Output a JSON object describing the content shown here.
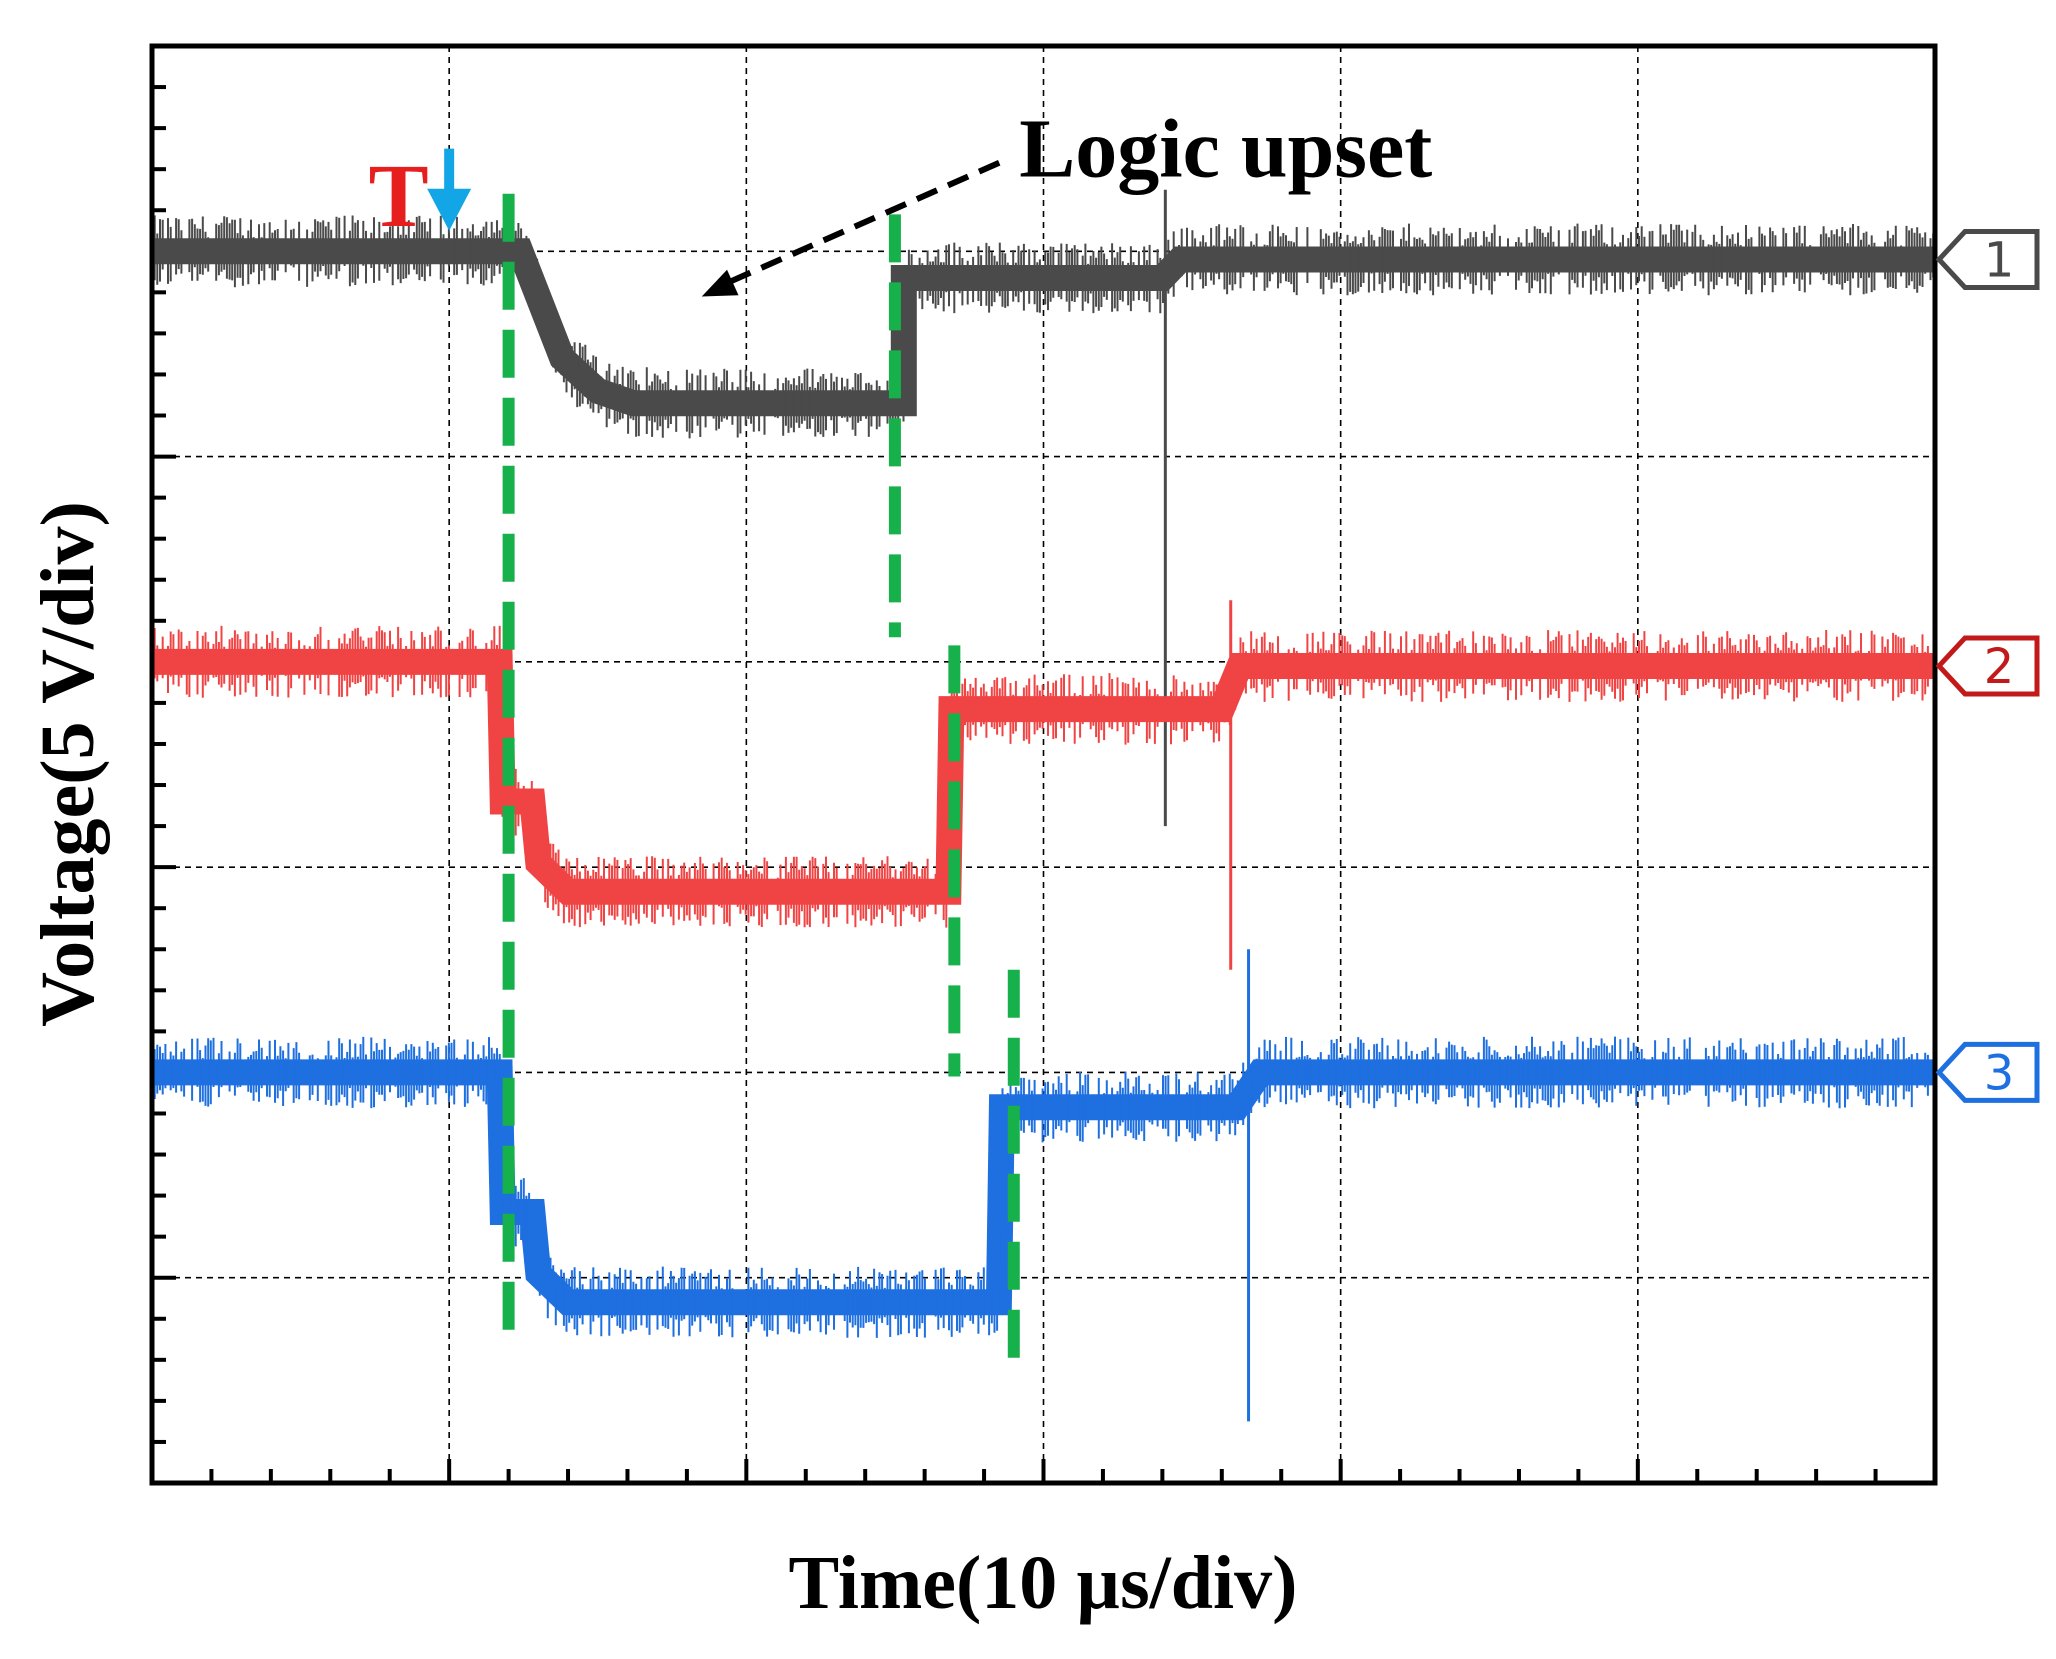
{
  "chart_data": {
    "type": "line",
    "title": "",
    "xlabel": "Time(10 µs/div)",
    "ylabel": "Voltage(5 V/div)",
    "x_unit": "µs",
    "x_per_div": 10,
    "y_per_div_volts": 5,
    "xlim": [
      0,
      60
    ],
    "ylim_div": [
      -3.5,
      3.5
    ],
    "grid": true,
    "divisions": {
      "x": 6,
      "y": 7
    },
    "series": [
      {
        "name": "1",
        "color": "#4a4a4a",
        "marker_label": "1",
        "marker_color": "#4a4a4a",
        "points": [
          [
            0,
            2.5
          ],
          [
            1.6,
            2.5
          ],
          [
            2.2,
            2.5
          ],
          [
            11.5,
            2.5
          ],
          [
            12.4,
            2.5
          ],
          [
            13.8,
            1.98
          ],
          [
            15.0,
            1.82
          ],
          [
            16.2,
            1.76
          ],
          [
            24.5,
            1.76
          ],
          [
            25.3,
            1.76
          ],
          [
            25.3,
            2.37
          ],
          [
            34.0,
            2.37
          ],
          [
            34.6,
            2.46
          ],
          [
            60,
            2.46
          ]
        ],
        "spike": {
          "x": 34.1,
          "y_min": -0.3,
          "y_max": 2.8
        }
      },
      {
        "name": "2",
        "color": "#f04444",
        "marker_label": "2",
        "marker_color": "#c21a1a",
        "points": [
          [
            0,
            0.5
          ],
          [
            11.7,
            0.5
          ],
          [
            11.8,
            -0.18
          ],
          [
            12.8,
            -0.18
          ],
          [
            13.0,
            -0.48
          ],
          [
            14.0,
            -0.62
          ],
          [
            26.8,
            -0.62
          ],
          [
            26.9,
            0.27
          ],
          [
            36.0,
            0.27
          ],
          [
            36.6,
            0.48
          ],
          [
            60,
            0.48
          ]
        ],
        "spike": {
          "x": 36.3,
          "y_min": -1.0,
          "y_max": 0.8
        }
      },
      {
        "name": "3",
        "color": "#1e6fe0",
        "marker_label": "3",
        "marker_color": "#1e6fe0",
        "points": [
          [
            0,
            -1.5
          ],
          [
            11.7,
            -1.5
          ],
          [
            11.8,
            -2.18
          ],
          [
            12.8,
            -2.18
          ],
          [
            13.0,
            -2.48
          ],
          [
            14.0,
            -2.62
          ],
          [
            28.5,
            -2.62
          ],
          [
            28.6,
            -1.67
          ],
          [
            36.5,
            -1.67
          ],
          [
            37.3,
            -1.5
          ],
          [
            60,
            -1.5
          ]
        ],
        "spike": {
          "x": 36.9,
          "y_min": -3.2,
          "y_max": -0.9
        }
      }
    ],
    "reference_lines": [
      {
        "name": "transition-1",
        "color": "#16b14a",
        "x": 12.0,
        "y_from": 2.78,
        "y_to": -2.85
      },
      {
        "name": "recover-1",
        "color": "#16b14a",
        "x": 25.0,
        "y_from": 2.68,
        "y_to": 0.62
      },
      {
        "name": "recover-2",
        "color": "#16b14a",
        "x": 27.0,
        "y_from": 0.58,
        "y_to": -1.52
      },
      {
        "name": "recover-3",
        "color": "#16b14a",
        "x": 29.0,
        "y_from": -1.0,
        "y_to": -2.95
      }
    ],
    "annotations": [
      {
        "text": "T",
        "color": "#e61e1e",
        "x": 8.3,
        "y": 2.77
      },
      {
        "text": "Logic upset",
        "color": "#000000",
        "x": 27.5,
        "y": 2.98,
        "arrow_to": {
          "x": 18.5,
          "y": 2.28
        }
      },
      {
        "text": "trigger-arrow",
        "color": "#13a6e6",
        "x": 10.0,
        "y_from": 3.0,
        "y_to": 2.6
      }
    ]
  }
}
